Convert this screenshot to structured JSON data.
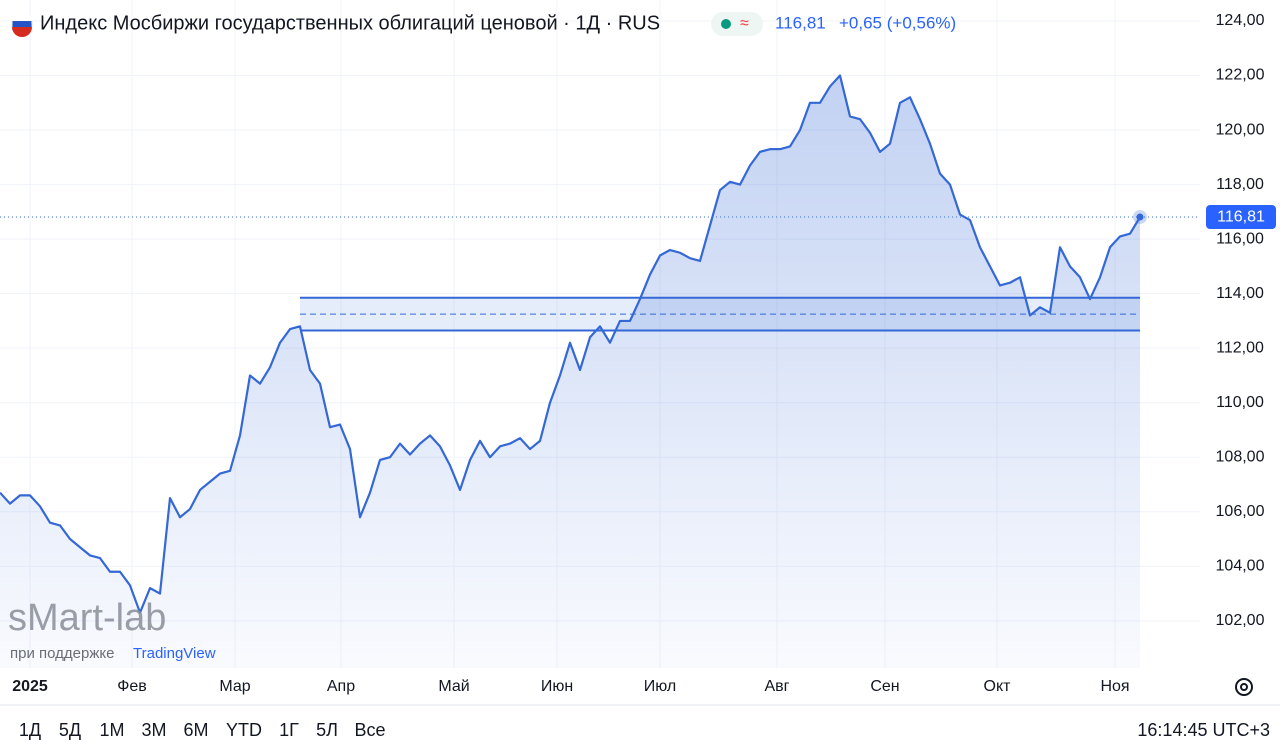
{
  "chart_data": {
    "type": "line",
    "title": "Индекс Мосбиржи государственных облигаций ценовой · 1Д · RUS",
    "last_price": {
      "value": 116.81,
      "label": "116,81"
    },
    "change": "+0,65 (+0,56%)",
    "series": [
      {
        "color": "#3468d6",
        "values": [
          106.7,
          106.3,
          106.6,
          106.6,
          106.2,
          105.6,
          105.5,
          105.0,
          104.7,
          104.4,
          104.3,
          103.8,
          103.8,
          103.3,
          102.3,
          103.2,
          103.0,
          106.5,
          105.8,
          106.1,
          106.8,
          107.1,
          107.4,
          107.5,
          108.8,
          111.0,
          110.7,
          111.3,
          112.2,
          112.7,
          112.8,
          111.2,
          110.7,
          109.1,
          109.2,
          108.3,
          105.8,
          106.7,
          107.9,
          108.0,
          108.5,
          108.1,
          108.5,
          108.8,
          108.4,
          107.7,
          106.8,
          107.9,
          108.6,
          108.0,
          108.4,
          108.5,
          108.7,
          108.3,
          108.6,
          110.0,
          111.0,
          112.2,
          111.2,
          112.4,
          112.8,
          112.2,
          113.0,
          113.0,
          113.8,
          114.7,
          115.4,
          115.6,
          115.5,
          115.3,
          115.2,
          116.5,
          117.8,
          118.1,
          118.0,
          118.7,
          119.2,
          119.3,
          119.3,
          119.4,
          120.0,
          121.0,
          121.0,
          121.6,
          122.0,
          120.5,
          120.4,
          119.9,
          119.2,
          119.5,
          121.0,
          121.2,
          120.4,
          119.5,
          118.4,
          118.0,
          116.9,
          116.7,
          115.7,
          115.0,
          114.3,
          114.4,
          114.6,
          113.2,
          113.5,
          113.3,
          115.7,
          115.0,
          114.6,
          113.8,
          114.6,
          115.7,
          116.1,
          116.2,
          116.81
        ]
      }
    ],
    "zone": {
      "start": 30,
      "end": 114,
      "top": 113.85,
      "mid": 113.25,
      "bottom": 112.65
    },
    "xlim": [
      0,
      120
    ],
    "xticks": [
      {
        "value": 3,
        "label": "2025"
      },
      {
        "value": 13.2,
        "label": "Фев"
      },
      {
        "value": 23.5,
        "label": "Мар"
      },
      {
        "value": 34.1,
        "label": "Апр"
      },
      {
        "value": 45.4,
        "label": "Май"
      },
      {
        "value": 55.7,
        "label": "Июн"
      },
      {
        "value": 66,
        "label": "Июл"
      },
      {
        "value": 77.7,
        "label": "Авг"
      },
      {
        "value": 88.5,
        "label": "Сен"
      },
      {
        "value": 99.7,
        "label": "Окт"
      },
      {
        "value": 111.5,
        "label": "Ноя"
      }
    ],
    "ylim": [
      100.27,
      124.77
    ],
    "yticks": [
      {
        "value": 102,
        "label": "102,00"
      },
      {
        "value": 104,
        "label": "104,00"
      },
      {
        "value": 106,
        "label": "106,00"
      },
      {
        "value": 108,
        "label": "108,00"
      },
      {
        "value": 110,
        "label": "110,00"
      },
      {
        "value": 112,
        "label": "112,00"
      },
      {
        "value": 114,
        "label": "114,00"
      },
      {
        "value": 116,
        "label": "116,00"
      },
      {
        "value": 118,
        "label": "118,00"
      },
      {
        "value": 120,
        "label": "120,00"
      },
      {
        "value": 122,
        "label": "122,00"
      },
      {
        "value": 124,
        "label": "124,00"
      }
    ],
    "grid": true
  },
  "watermark": {
    "brand": "sMart-lab",
    "support": "при поддержке",
    "partner": "TradingView"
  },
  "toolbar": {
    "ranges": [
      "1Д",
      "5Д",
      "1М",
      "3М",
      "6М",
      "YTD",
      "1Г",
      "5Л",
      "Все"
    ],
    "time": "16:14:45 UTC+3"
  }
}
